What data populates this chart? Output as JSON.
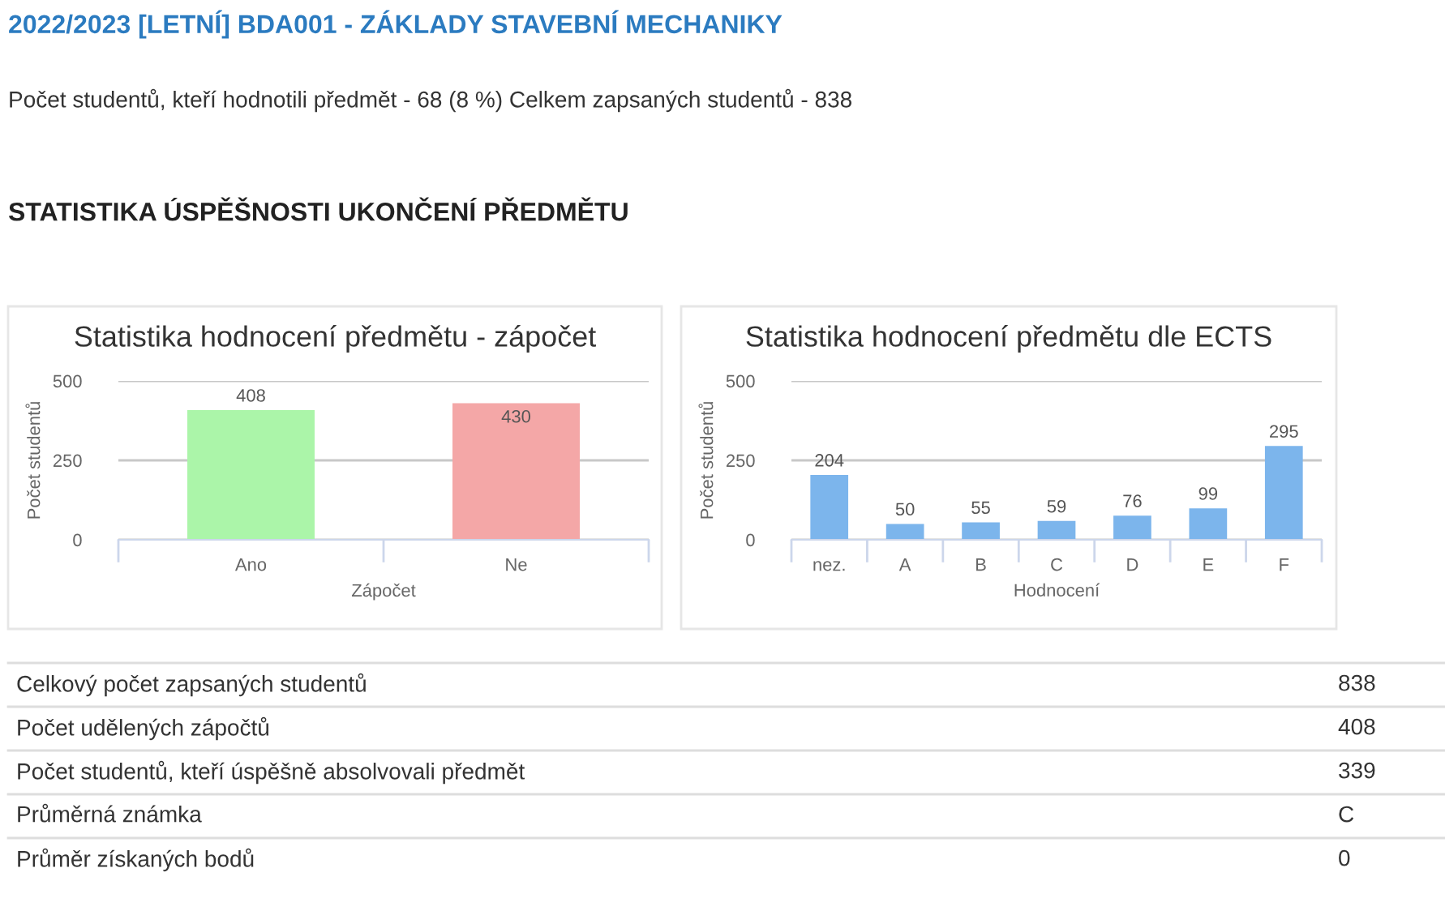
{
  "chart_data": [
    {
      "type": "other",
      "title": "2022/2023 [LETNÍ] BDA001 - ZÁKLADY STAVEBNÍ MECHANIKY",
      "subtitle": "Počet studentů, kteří hodnotili předmět - 68 (8 %) Celkem zapsaných studentů - 838",
      "annotations": [
        "STATISTIKA ÚSPĚŠNOSTI UKONČENÍ PŘEDMĚTU"
      ]
    },
    {
      "type": "bar",
      "title": "Statistika hodnocení předmětu - zápočet",
      "xlabel": "Zápočet",
      "ylabel": "Počet studentů",
      "categories": [
        "Ano",
        "Ne"
      ],
      "values": [
        408,
        430
      ],
      "colors": [
        "#abf5a9",
        "#f4a7a7"
      ],
      "ylim": [
        0,
        500
      ],
      "yticks": [
        0,
        250,
        500
      ],
      "grid": "y",
      "data_labels": true
    },
    {
      "type": "bar",
      "title": "Statistika hodnocení předmětu dle ECTS",
      "xlabel": "Hodnocení",
      "ylabel": "Počet studentů",
      "categories": [
        "nez.",
        "A",
        "B",
        "C",
        "D",
        "E",
        "F"
      ],
      "values": [
        204,
        50,
        55,
        59,
        76,
        99,
        295
      ],
      "color": "#7cb5ec",
      "ylim": [
        0,
        500
      ],
      "yticks": [
        0,
        250,
        500
      ],
      "grid": "y",
      "data_labels": true
    },
    {
      "type": "other",
      "categories": [
        "Celkový počet zapsaných studentů",
        "Počet udělených zápočtů",
        "Počet studentů, kteří úspěšně absolvovali předmět",
        "Průměrná známka",
        "Průměr získaných bodů"
      ],
      "value_labels": [
        "838",
        "408",
        "339",
        "C",
        "0"
      ]
    }
  ]
}
